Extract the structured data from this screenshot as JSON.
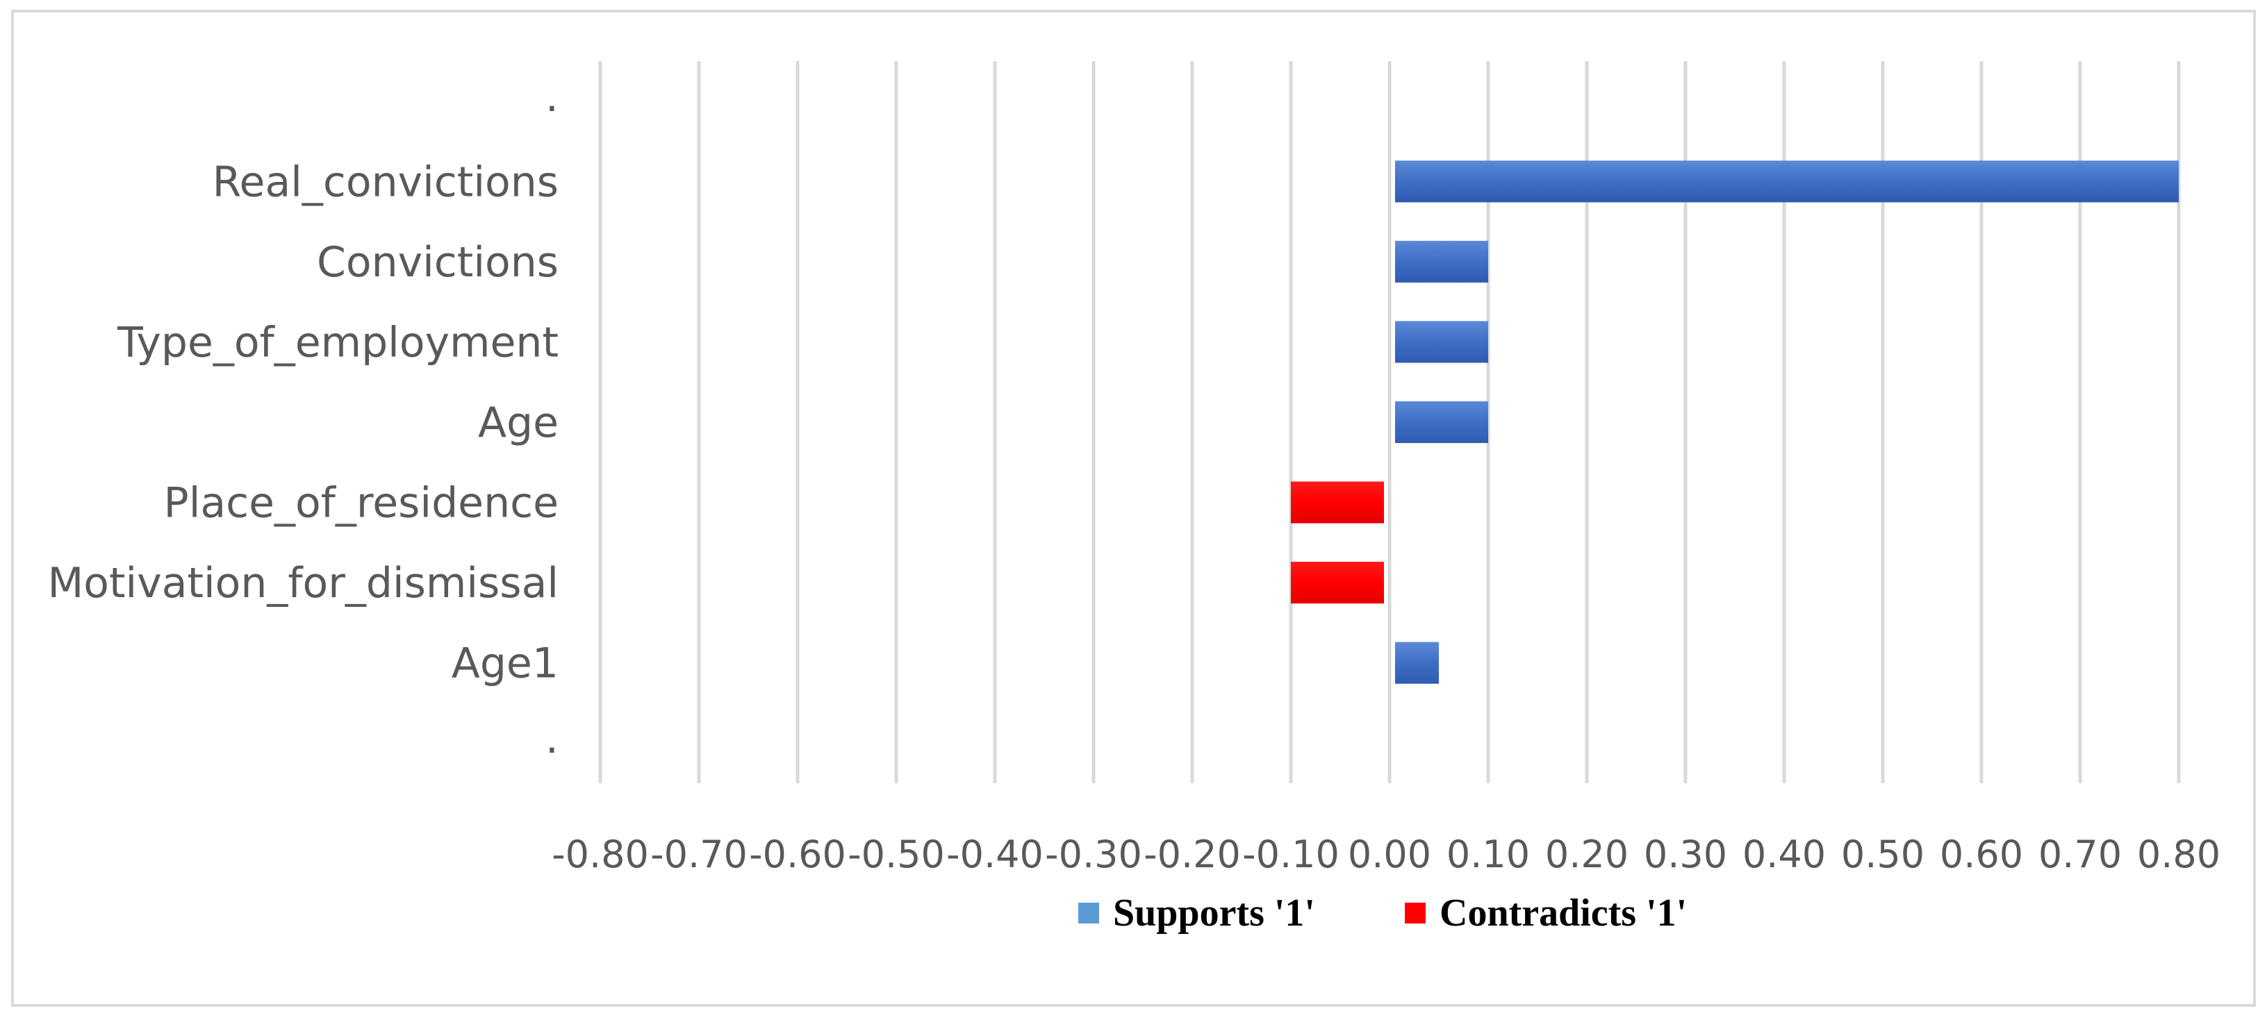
{
  "chart_data": {
    "type": "bar",
    "orientation": "horizontal",
    "categories": [
      "Real_convictions",
      "Convictions",
      "Type_of_employment",
      "Age",
      "Place_of_residence",
      "Motivation_for_dismissal",
      "Age1"
    ],
    "values": [
      0.8,
      0.1,
      0.1,
      0.1,
      -0.1,
      -0.1,
      0.05
    ],
    "series": [
      {
        "name": "Supports '1'",
        "color": "#4472C4",
        "values": [
          0.8,
          0.1,
          0.1,
          0.1,
          0,
          0,
          0.05
        ]
      },
      {
        "name": "Contradicts '1'",
        "color": "#FF0000",
        "values": [
          0,
          0,
          0,
          0,
          -0.1,
          -0.1,
          0
        ]
      }
    ],
    "xlim": [
      -0.8,
      0.8
    ],
    "xticks": [
      "-0.80",
      "-0.70",
      "-0.60",
      "-0.50",
      "-0.40",
      "-0.30",
      "-0.20",
      "-0.10",
      "0.00",
      "0.10",
      "0.20",
      "0.30",
      "0.40",
      "0.50",
      "0.60",
      "0.70",
      "0.80"
    ],
    "end_marks": [
      ".",
      "."
    ],
    "grid": true,
    "legend": [
      "Supports '1'",
      "Contradicts '1'"
    ],
    "legend_position": "bottom",
    "title": "",
    "xlabel": "",
    "ylabel": ""
  }
}
